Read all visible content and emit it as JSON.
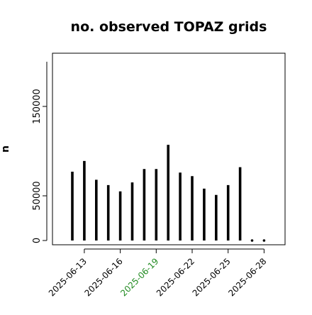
{
  "chart_data": {
    "type": "bar",
    "title": "no. observed TOPAZ grids",
    "xlabel": "",
    "ylabel": "n",
    "x_tick_labels": [
      "2025-06-13",
      "2025-06-16",
      "2025-06-19",
      "2025-06-22",
      "2025-06-25",
      "2025-06-28"
    ],
    "x_tick_dates": [
      "2025-06-13",
      "2025-06-16",
      "2025-06-19",
      "2025-06-22",
      "2025-06-25",
      "2025-06-28"
    ],
    "highlighted_tick": "2025-06-19",
    "highlight_color": "#228b22",
    "y_ticks": [
      0,
      50000,
      150000
    ],
    "y_tick_labels": [
      "0",
      "50000",
      "150000"
    ],
    "ylim": [
      0,
      200000
    ],
    "x": [
      "2025-06-12",
      "2025-06-13",
      "2025-06-14",
      "2025-06-15",
      "2025-06-16",
      "2025-06-17",
      "2025-06-18",
      "2025-06-19",
      "2025-06-20",
      "2025-06-21",
      "2025-06-22",
      "2025-06-23",
      "2025-06-24",
      "2025-06-25",
      "2025-06-26",
      "2025-06-27",
      "2025-06-28"
    ],
    "values": [
      77000,
      89000,
      68000,
      62000,
      55000,
      65000,
      80000,
      80000,
      107000,
      76000,
      72000,
      58000,
      51000,
      62000,
      82000,
      0,
      0
    ],
    "bar_color": "#000000",
    "grid": false
  }
}
